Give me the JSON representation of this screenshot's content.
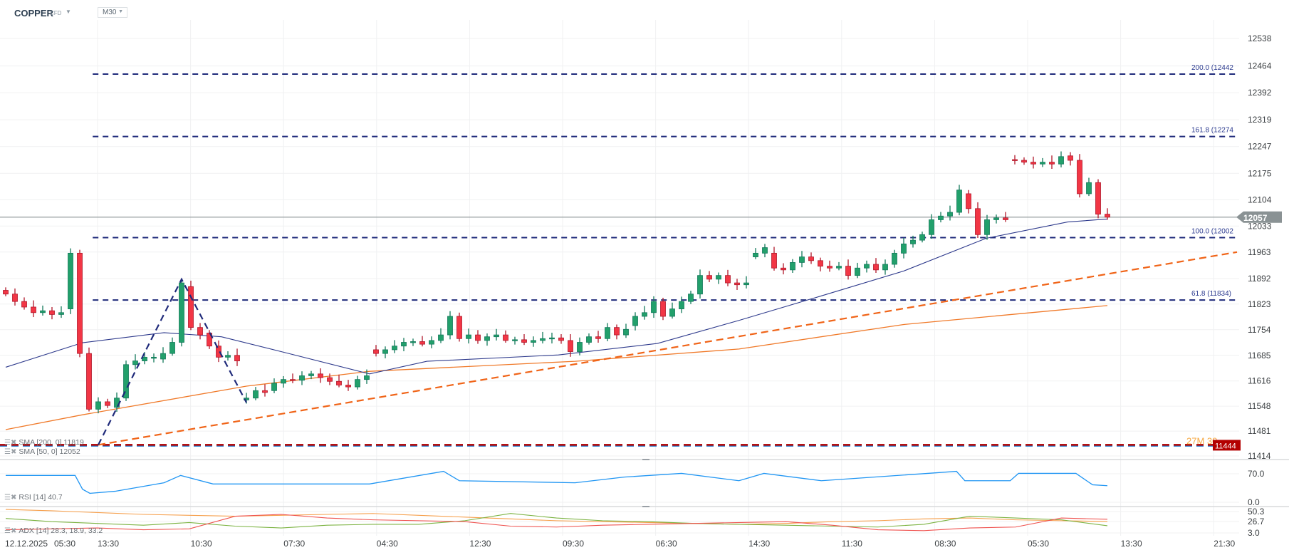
{
  "header": {
    "symbol": "COPPER",
    "instrument_type": "CFD",
    "timeframe": "M30"
  },
  "colors": {
    "up": "#22a06b",
    "down": "#f23645",
    "sma50": "#2e3a8c",
    "sma200": "#f07a2a",
    "fib": "#1f2a7a",
    "trend": "#f06418",
    "support": "#b00000",
    "price_line": "#8a9294",
    "rsi": "#2196f3",
    "adx": "#f6a04d",
    "plus_di": "#7cb342",
    "minus_di": "#ef5350"
  },
  "legend": {
    "sma200": "SMA [200, 0] 11819",
    "sma50": "SMA [50, 0] 12052",
    "rsi": "RSI [14] 40.7",
    "adx": "ADX [14] 28.3, 18.9, 33.2"
  },
  "price_tag": "12057",
  "support_tag": "11444",
  "support_overlay": "27M 30",
  "chart_data": {
    "type": "candlestick",
    "price_axis_ticks": [
      "12538",
      "12464",
      "12392",
      "12319",
      "12247",
      "12175",
      "12104",
      "12033",
      "11963",
      "11892",
      "11823",
      "11754",
      "11685",
      "11616",
      "11548",
      "11481",
      "11414"
    ],
    "rsi_axis_ticks": [
      "70.0",
      "0.0"
    ],
    "adx_axis_ticks": [
      "50.3",
      "26.7",
      "3.0"
    ],
    "time_labels": [
      "12.12.2025",
      "05:30",
      "13:30",
      "10:30",
      "07:30",
      "04:30",
      "12:30",
      "09:30",
      "06:30",
      "14:30",
      "11:30",
      "08:30",
      "05:30",
      "13:30",
      "21:30"
    ],
    "last_price": 12057,
    "candles": [
      [
        11860,
        11850
      ],
      [
        11850,
        11830
      ],
      [
        11830,
        11815
      ],
      [
        11815,
        11800
      ],
      [
        11800,
        11805
      ],
      [
        11805,
        11795
      ],
      [
        11795,
        11800
      ],
      [
        11810,
        11960
      ],
      [
        11960,
        11690
      ],
      [
        11690,
        11540
      ],
      [
        11540,
        11560
      ],
      [
        11560,
        11550
      ],
      [
        11545,
        11570
      ],
      [
        11570,
        11660
      ],
      [
        11660,
        11670
      ],
      [
        11670,
        11680
      ],
      [
        11680,
        11680
      ],
      [
        11675,
        11690
      ],
      [
        11690,
        11720
      ],
      [
        11720,
        11880
      ],
      [
        11870,
        11760
      ],
      [
        11760,
        11740
      ],
      [
        11745,
        11710
      ],
      [
        11710,
        11680
      ],
      [
        11680,
        11685
      ],
      [
        11685,
        11670
      ],
      [
        11565,
        11570
      ],
      [
        11570,
        11590
      ],
      [
        11590,
        11585
      ],
      [
        11590,
        11610
      ],
      [
        11610,
        11620
      ],
      [
        11620,
        11618
      ],
      [
        11618,
        11630
      ],
      [
        11630,
        11635
      ],
      [
        11635,
        11625
      ],
      [
        11625,
        11615
      ],
      [
        11615,
        11605
      ],
      [
        11605,
        11600
      ],
      [
        11600,
        11620
      ],
      [
        11620,
        11630
      ],
      [
        11700,
        11690
      ],
      [
        11690,
        11700
      ],
      [
        11700,
        11710
      ],
      [
        11710,
        11720
      ],
      [
        11720,
        11722
      ],
      [
        11722,
        11715
      ],
      [
        11715,
        11725
      ],
      [
        11725,
        11740
      ],
      [
        11740,
        11790
      ],
      [
        11790,
        11730
      ],
      [
        11730,
        11740
      ],
      [
        11740,
        11725
      ],
      [
        11725,
        11735
      ],
      [
        11735,
        11740
      ],
      [
        11740,
        11725
      ],
      [
        11725,
        11727
      ],
      [
        11727,
        11720
      ],
      [
        11720,
        11725
      ],
      [
        11725,
        11730
      ],
      [
        11730,
        11732
      ],
      [
        11732,
        11725
      ],
      [
        11725,
        11695
      ],
      [
        11695,
        11720
      ],
      [
        11720,
        11735
      ],
      [
        11735,
        11730
      ],
      [
        11730,
        11760
      ],
      [
        11760,
        11740
      ],
      [
        11740,
        11755
      ],
      [
        11765,
        11790
      ],
      [
        11790,
        11800
      ],
      [
        11800,
        11830
      ],
      [
        11830,
        11790
      ],
      [
        11790,
        11810
      ],
      [
        11810,
        11830
      ],
      [
        11830,
        11850
      ],
      [
        11850,
        11900
      ],
      [
        11900,
        11890
      ],
      [
        11890,
        11900
      ],
      [
        11900,
        11880
      ],
      [
        11880,
        11875
      ],
      [
        11875,
        11880
      ],
      [
        11950,
        11960
      ],
      [
        11960,
        11975
      ],
      [
        11960,
        11920
      ],
      [
        11920,
        11915
      ],
      [
        11915,
        11935
      ],
      [
        11935,
        11950
      ],
      [
        11950,
        11940
      ],
      [
        11940,
        11925
      ],
      [
        11925,
        11920
      ],
      [
        11920,
        11925
      ],
      [
        11925,
        11900
      ],
      [
        11900,
        11920
      ],
      [
        11920,
        11930
      ],
      [
        11930,
        11915
      ],
      [
        11915,
        11930
      ],
      [
        11930,
        11960
      ],
      [
        11960,
        11985
      ],
      [
        11985,
        11995
      ],
      [
        11995,
        12010
      ],
      [
        12010,
        12050
      ],
      [
        12050,
        12060
      ],
      [
        12060,
        12070
      ],
      [
        12070,
        12130
      ],
      [
        12120,
        12080
      ],
      [
        12080,
        12010
      ],
      [
        12010,
        12050
      ],
      [
        12050,
        12055
      ],
      [
        12055,
        12050
      ],
      [
        12212,
        12210
      ],
      [
        12210,
        12205
      ],
      [
        12205,
        12200
      ],
      [
        12200,
        12205
      ],
      [
        12205,
        12200
      ],
      [
        12200,
        12220
      ],
      [
        12222,
        12210
      ],
      [
        12210,
        12120
      ],
      [
        12120,
        12150
      ],
      [
        12150,
        12065
      ],
      [
        12065,
        12057
      ]
    ],
    "sma50": [
      [
        0,
        11653
      ],
      [
        8.3,
        11719
      ],
      [
        17.1,
        11746
      ],
      [
        23.3,
        11735
      ],
      [
        30.4,
        11691
      ],
      [
        39.3,
        11635
      ],
      [
        45.5,
        11669
      ],
      [
        59.7,
        11686
      ],
      [
        70.4,
        11717
      ],
      [
        79.2,
        11779
      ],
      [
        88.1,
        11845
      ],
      [
        97,
        11912
      ],
      [
        105.9,
        12000
      ],
      [
        114.7,
        12044
      ],
      [
        119,
        12052
      ]
    ],
    "sma200": [
      [
        0,
        11485
      ],
      [
        8.3,
        11525
      ],
      [
        26,
        11602
      ],
      [
        39.3,
        11642
      ],
      [
        61.5,
        11669
      ],
      [
        79.2,
        11702
      ],
      [
        97,
        11768
      ],
      [
        119,
        11819
      ]
    ],
    "fibonacci": [
      {
        "label": "200.0 (12442",
        "price": 12442
      },
      {
        "label": "161.8 (12274",
        "price": 12274
      },
      {
        "label": "100.0 (12002",
        "price": 12002
      },
      {
        "label": "61.8 (11834)",
        "price": 11834
      }
    ],
    "trendline": [
      [
        10,
        11444
      ],
      [
        133,
        11963
      ]
    ],
    "zigzag": [
      [
        10,
        11444
      ],
      [
        19,
        11890
      ],
      [
        26,
        11558
      ]
    ],
    "support_level": 11444,
    "rsi": [
      [
        0,
        66
      ],
      [
        7.5,
        66
      ],
      [
        8.3,
        32
      ],
      [
        9.1,
        22
      ],
      [
        11.8,
        27
      ],
      [
        17.1,
        48
      ],
      [
        18.9,
        66
      ],
      [
        22.4,
        45
      ],
      [
        30.4,
        45
      ],
      [
        39.3,
        45
      ],
      [
        47.3,
        76
      ],
      [
        49,
        53
      ],
      [
        61.5,
        48
      ],
      [
        66.8,
        62
      ],
      [
        73,
        71
      ],
      [
        79.2,
        53
      ],
      [
        81.9,
        71
      ],
      [
        88.1,
        53
      ],
      [
        99.6,
        71
      ],
      [
        102.7,
        76
      ],
      [
        103.6,
        53
      ],
      [
        108.5,
        53
      ],
      [
        109.4,
        71
      ],
      [
        115.6,
        71
      ],
      [
        117.4,
        43
      ],
      [
        119,
        40.7
      ]
    ],
    "adx": [
      55,
      52,
      48,
      44,
      42,
      40,
      42,
      44,
      46,
      42,
      38,
      34,
      30,
      28,
      26,
      24,
      22,
      24,
      28,
      30,
      34,
      36,
      32,
      30,
      28.3
    ],
    "plus_di": [
      35,
      28,
      24,
      20,
      26,
      18,
      14,
      20,
      22,
      22,
      30,
      46,
      36,
      30,
      28,
      24,
      22,
      20,
      18,
      16,
      22,
      40,
      36,
      32,
      18.9
    ],
    "minus_di": [
      10,
      12,
      14,
      10,
      12,
      40,
      44,
      36,
      32,
      30,
      28,
      18,
      16,
      20,
      22,
      24,
      26,
      28,
      20,
      10,
      8,
      14,
      16,
      36,
      33.2
    ]
  }
}
